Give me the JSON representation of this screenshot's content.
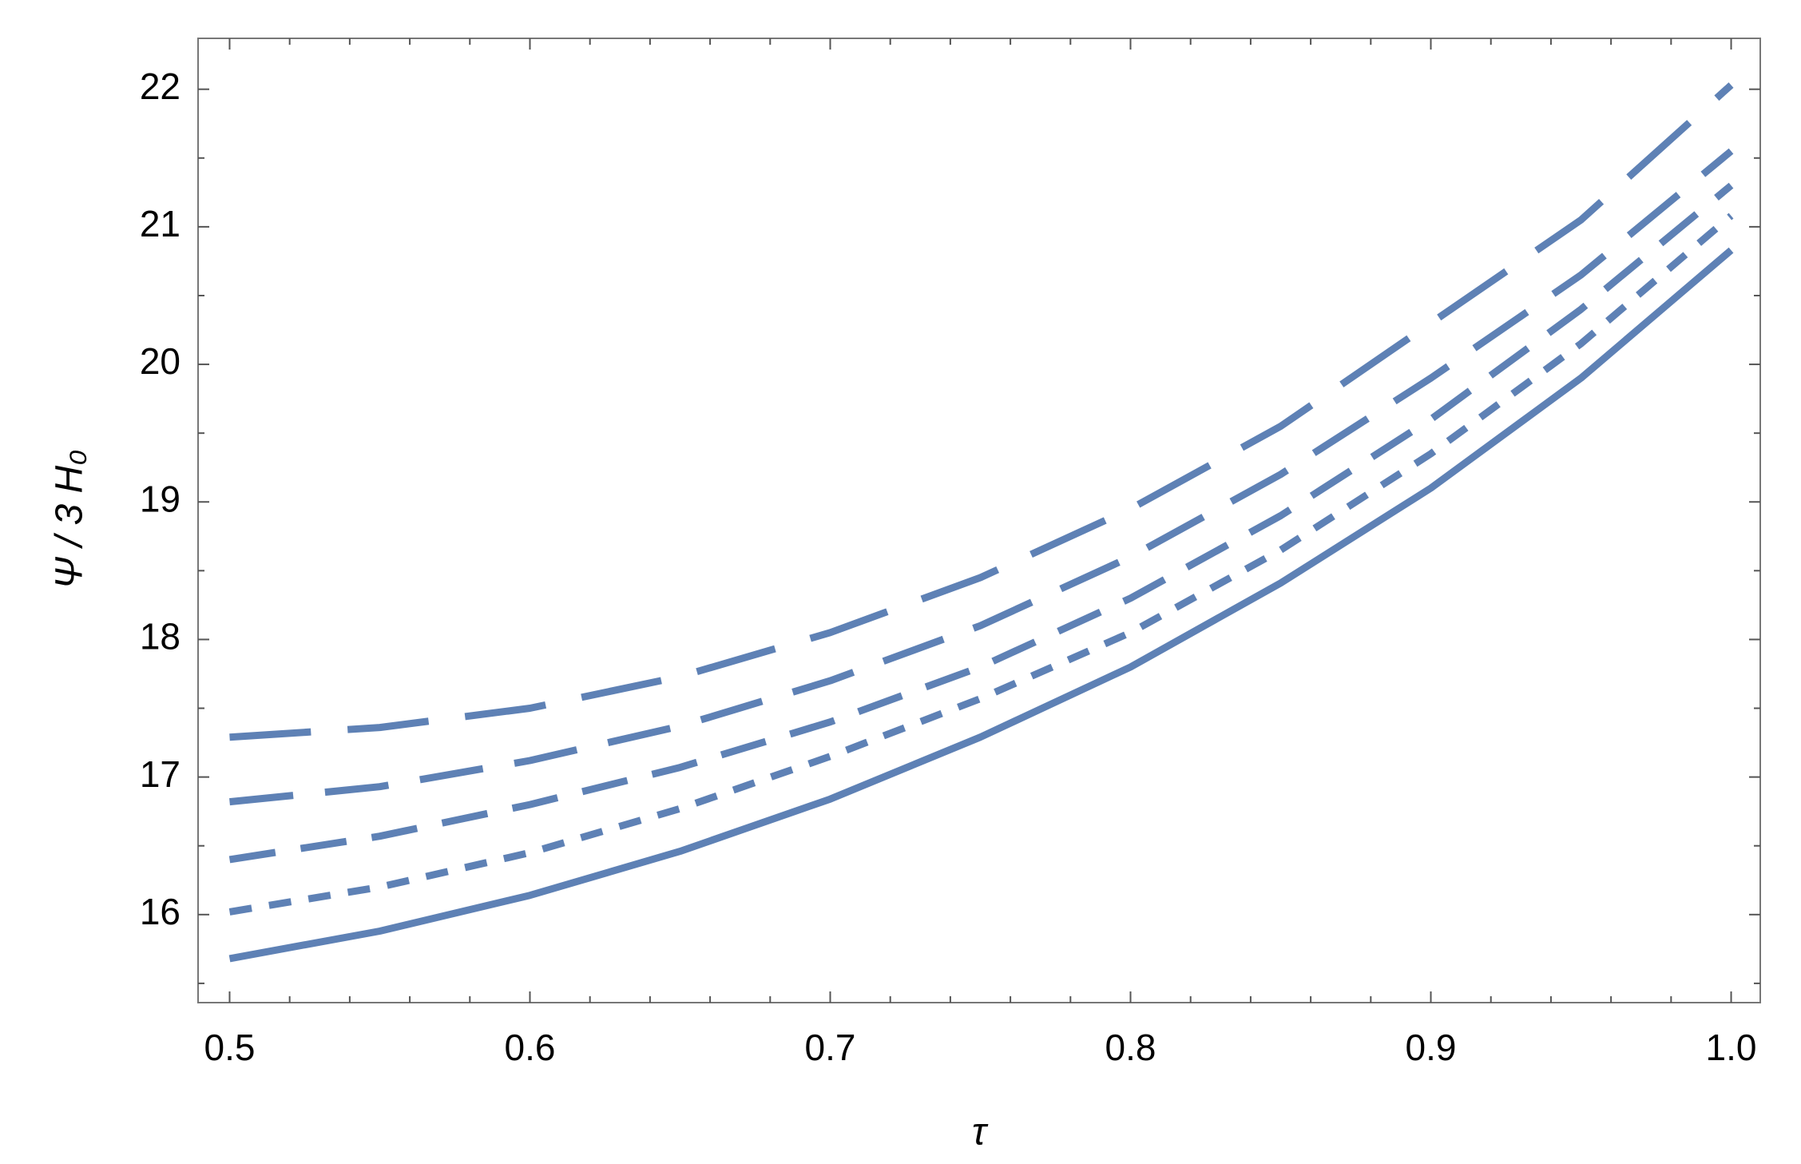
{
  "chart_data": {
    "type": "line",
    "xlabel": "τ",
    "ylabel": "Ψ / 3 H₀",
    "x": [
      0.5,
      0.55,
      0.6,
      0.65,
      0.7,
      0.75,
      0.8,
      0.85,
      0.9,
      0.95,
      1.0
    ],
    "series": [
      {
        "color": "#5e81b5",
        "style": "solid",
        "values": [
          15.68,
          15.88,
          16.14,
          16.46,
          16.84,
          17.29,
          17.8,
          18.41,
          19.1,
          19.9,
          20.83
        ]
      },
      {
        "color": "#5e81b5",
        "style": "dotted",
        "values": [
          16.02,
          16.2,
          16.45,
          16.77,
          17.15,
          17.57,
          18.05,
          18.65,
          19.35,
          20.15,
          21.08
        ]
      },
      {
        "color": "#5e81b5",
        "style": "dashed",
        "values": [
          16.4,
          16.57,
          16.8,
          17.07,
          17.4,
          17.8,
          18.3,
          18.9,
          19.6,
          20.4,
          21.3
        ]
      },
      {
        "color": "#5e81b5",
        "style": "long-dashed",
        "values": [
          16.82,
          16.93,
          17.12,
          17.37,
          17.7,
          18.1,
          18.6,
          19.2,
          19.9,
          20.65,
          21.55
        ]
      },
      {
        "color": "#5e81b5",
        "style": "longest-dashed",
        "values": [
          17.29,
          17.36,
          17.5,
          17.73,
          18.05,
          18.45,
          18.95,
          19.55,
          20.3,
          21.05,
          22.03
        ]
      }
    ],
    "xlim": [
      0.4895,
      1.0097
    ],
    "ylim": [
      15.36,
      22.37
    ],
    "xticks": [
      0.5,
      0.6,
      0.7,
      0.8,
      0.9,
      {
        "value": 1,
        "label": "1.0"
      }
    ],
    "yticks": [
      16,
      17,
      18,
      19,
      20,
      21,
      22
    ],
    "xminorticks": [
      0.52,
      0.54,
      0.56,
      0.58,
      0.62,
      0.64,
      0.66,
      0.68,
      0.72,
      0.74,
      0.76,
      0.78,
      0.82,
      0.84,
      0.86,
      0.88,
      0.92,
      0.94,
      0.96,
      0.98
    ],
    "yminorticks": [
      15.5,
      16.5,
      17.5,
      18.5,
      19.5,
      20.5,
      21.5
    ],
    "grid": false
  }
}
